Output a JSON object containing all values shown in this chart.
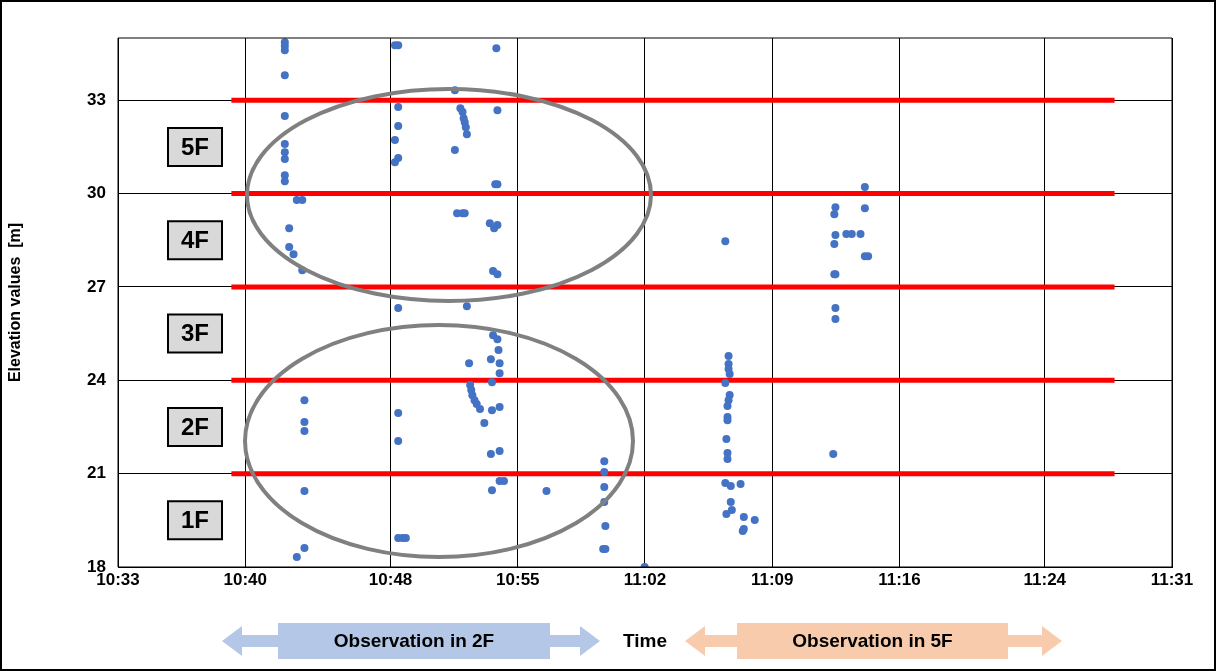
{
  "chart_data": {
    "type": "scatter",
    "ylabel": "Elevation values  [m]",
    "xlabel": "Time",
    "xlim": [
      10.55,
      11.5167
    ],
    "xticks": [
      {
        "value": 10.55,
        "label": "10:33"
      },
      {
        "value": 10.6667,
        "label": "10:40"
      },
      {
        "value": 10.8,
        "label": "10:48"
      },
      {
        "value": 10.9167,
        "label": "10:55"
      },
      {
        "value": 11.0333,
        "label": "11:02"
      },
      {
        "value": 11.15,
        "label": "11:09"
      },
      {
        "value": 11.2667,
        "label": "11:16"
      },
      {
        "value": 11.4,
        "label": "11:24"
      },
      {
        "value": 11.5167,
        "label": "11:31"
      }
    ],
    "ylim": [
      18,
      35
    ],
    "yticks": [
      18,
      21,
      24,
      27,
      30,
      33
    ],
    "grid": true,
    "legend": false,
    "marker": "circle",
    "series": [
      {
        "type": "scatter",
        "color": "#4472c4",
        "x": [
          10.703,
          10.703,
          10.703,
          10.703,
          10.703,
          10.703,
          10.703,
          10.703,
          10.703,
          10.703,
          10.714,
          10.719,
          10.707,
          10.707,
          10.711,
          10.719,
          10.721,
          10.721,
          10.721,
          10.721,
          10.721,
          10.714,
          10.804,
          10.807,
          10.807,
          10.807,
          10.804,
          10.807,
          10.804,
          10.807,
          10.807,
          10.807,
          10.807,
          10.811,
          10.814,
          10.859,
          10.864,
          10.866,
          10.867,
          10.868,
          10.869,
          10.87,
          10.859,
          10.861,
          10.866,
          10.868,
          10.87,
          10.872,
          10.873,
          10.874,
          10.875,
          10.877,
          10.879,
          10.882,
          10.886,
          10.897,
          10.898,
          10.896,
          10.898,
          10.891,
          10.895,
          10.898,
          10.894,
          10.898,
          10.894,
          10.898,
          10.899,
          10.892,
          10.9,
          10.9,
          10.893,
          10.9,
          10.893,
          10.892,
          10.9,
          10.9,
          10.904,
          10.893,
          10.943,
          10.996,
          10.996,
          10.996,
          10.996,
          10.997,
          10.995,
          10.997,
          11.033,
          11.107,
          11.11,
          11.11,
          11.11,
          11.111,
          11.107,
          11.111,
          11.11,
          11.109,
          11.109,
          11.109,
          11.108,
          11.109,
          11.109,
          11.107,
          11.112,
          11.121,
          11.112,
          11.113,
          11.108,
          11.124,
          11.134,
          11.124,
          11.123,
          11.235,
          11.208,
          11.235,
          11.207,
          11.208,
          11.218,
          11.223,
          11.231,
          11.207,
          11.235,
          11.238,
          11.207,
          11.208,
          11.208,
          11.208,
          11.206
        ],
        "values": [
          34.86,
          34.74,
          34.61,
          33.8,
          32.49,
          31.59,
          31.33,
          31.11,
          30.59,
          30.4,
          29.79,
          29.79,
          28.89,
          28.28,
          28.05,
          27.54,
          23.36,
          22.66,
          22.37,
          20.44,
          18.61,
          18.32,
          34.77,
          34.77,
          32.78,
          32.17,
          31.72,
          31.14,
          31.01,
          26.32,
          22.95,
          22.05,
          18.93,
          18.93,
          18.93,
          33.32,
          32.74,
          32.62,
          32.42,
          32.29,
          32.13,
          31.91,
          31.4,
          29.37,
          29.37,
          29.37,
          26.38,
          24.55,
          23.85,
          23.69,
          23.52,
          23.36,
          23.24,
          23.08,
          22.63,
          34.67,
          32.68,
          30.3,
          30.3,
          29.05,
          28.89,
          28.99,
          27.51,
          27.41,
          25.45,
          25.32,
          24.97,
          24.68,
          24.55,
          24.23,
          23.94,
          23.14,
          23.04,
          21.63,
          21.73,
          20.76,
          20.76,
          20.47,
          20.44,
          21.4,
          21.05,
          20.57,
          20.09,
          19.32,
          18.58,
          18.58,
          18.0,
          28.47,
          24.78,
          24.52,
          24.36,
          24.2,
          23.91,
          23.53,
          23.36,
          23.17,
          22.82,
          22.72,
          22.11,
          21.66,
          21.47,
          20.7,
          20.6,
          20.67,
          20.09,
          19.83,
          19.7,
          19.61,
          19.51,
          19.22,
          19.16,
          30.21,
          29.56,
          29.53,
          29.34,
          28.67,
          28.7,
          28.7,
          28.7,
          28.38,
          27.99,
          27.99,
          27.41,
          27.41,
          26.32,
          25.97,
          21.63
        ]
      },
      {
        "type": "line",
        "color": "#ff0000",
        "marker": "none",
        "x": [
          10.654,
          11.464
        ],
        "values": [
          33,
          33
        ]
      },
      {
        "type": "line",
        "color": "#ff0000",
        "marker": "none",
        "x": [
          10.654,
          11.464
        ],
        "values": [
          30,
          30
        ]
      },
      {
        "type": "line",
        "color": "#ff0000",
        "marker": "none",
        "x": [
          10.654,
          11.464
        ],
        "values": [
          27,
          27
        ]
      },
      {
        "type": "line",
        "color": "#ff0000",
        "marker": "none",
        "x": [
          10.654,
          11.464
        ],
        "values": [
          24,
          24
        ]
      },
      {
        "type": "line",
        "color": "#ff0000",
        "marker": "none",
        "x": [
          10.654,
          11.464
        ],
        "values": [
          21,
          21
        ]
      }
    ],
    "annotations": [
      "5F",
      "4F",
      "3F",
      "2F",
      "1F",
      "Observation in 2F",
      "Observation in 5F"
    ]
  }
}
